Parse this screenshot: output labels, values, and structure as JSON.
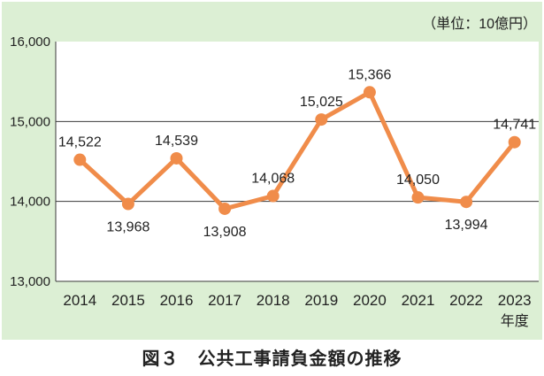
{
  "caption": "図３　公共工事請負金額の推移",
  "chart_data": {
    "type": "line",
    "unit_label": "（単位：10億円）",
    "xlabel": "年度",
    "ylabel": "",
    "categories": [
      "2014",
      "2015",
      "2016",
      "2017",
      "2018",
      "2019",
      "2020",
      "2021",
      "2022",
      "2023"
    ],
    "values": [
      14522,
      13968,
      14539,
      13908,
      14068,
      15025,
      15366,
      14050,
      13994,
      14741
    ],
    "data_labels": [
      "14,522",
      "13,968",
      "14,539",
      "13,908",
      "14,068",
      "15,025",
      "15,366",
      "14,050",
      "13,994",
      "14,741"
    ],
    "ylim": [
      13000,
      16000
    ],
    "yticks": [
      13000,
      14000,
      15000,
      16000
    ],
    "ytick_labels": [
      "13,000",
      "14,000",
      "15,000",
      "16,000"
    ],
    "grid": true,
    "line_color": "#f08c4a",
    "background_color": "#dcefd4"
  }
}
